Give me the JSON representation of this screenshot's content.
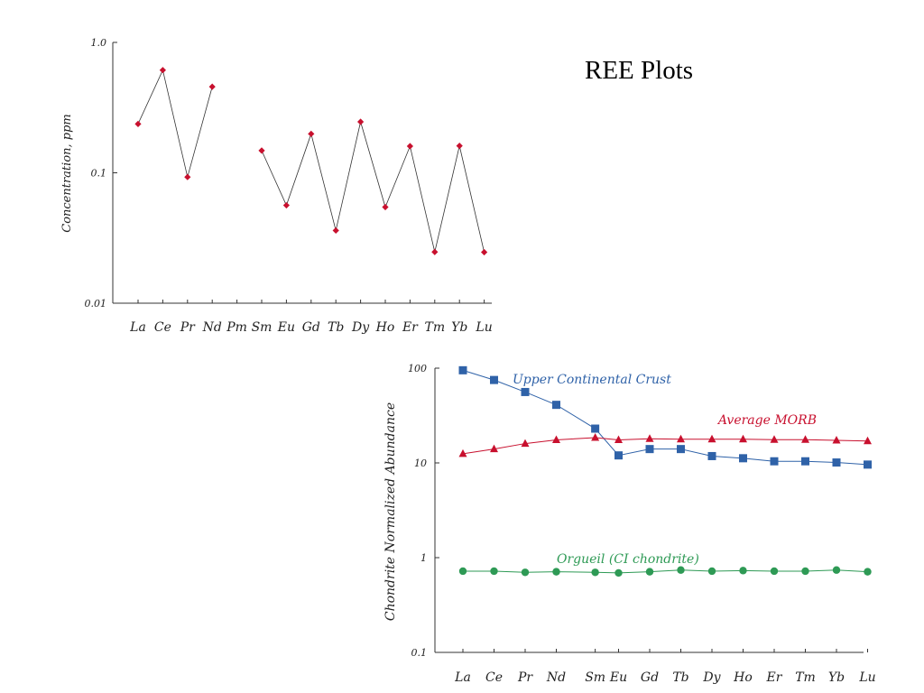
{
  "slide": {
    "title": "REE Plots"
  },
  "chart_data": [
    {
      "type": "line",
      "yscale": "log",
      "ylim": [
        0.01,
        1.0
      ],
      "ylabel": "Concentration, ppm",
      "y_ticks": [
        "1.0",
        "0.1",
        "0.01"
      ],
      "y_tick_values": [
        1.0,
        0.1,
        0.01
      ],
      "categories": [
        "La",
        "Ce",
        "Pr",
        "Nd",
        "Pm",
        "Sm",
        "Eu",
        "Gd",
        "Tb",
        "Dy",
        "Ho",
        "Er",
        "Tm",
        "Yb",
        "Lu"
      ],
      "series": [
        {
          "color": "#c8102e",
          "values": [
            0.237,
            0.613,
            0.0928,
            0.457,
            null,
            0.148,
            0.0563,
            0.199,
            0.0361,
            0.246,
            0.0546,
            0.16,
            0.0247,
            0.161,
            0.0246
          ]
        }
      ],
      "grid": false
    },
    {
      "type": "line",
      "yscale": "log",
      "ylim": [
        0.1,
        100
      ],
      "ylabel": "Chondrite Normalized Abundance",
      "y_ticks": [
        "100",
        "10",
        "1",
        "0.1"
      ],
      "y_tick_values": [
        100,
        10,
        1,
        0.1
      ],
      "categories": [
        "La",
        "Ce",
        "Pr",
        "Nd",
        "Sm",
        "Eu",
        "Gd",
        "Tb",
        "Dy",
        "Ho",
        "Er",
        "Tm",
        "Yb",
        "Lu"
      ],
      "x_positions": [
        0,
        1,
        2,
        3,
        4.25,
        5,
        6,
        7,
        8,
        9,
        10,
        11,
        12,
        13
      ],
      "series": [
        {
          "name": "Upper Continental Crust",
          "color": "#2f62a8",
          "marker": "square",
          "values": [
            95,
            75,
            56,
            41,
            23,
            12,
            14,
            14,
            11.8,
            11.2,
            10.4,
            10.4,
            10.1,
            9.6
          ]
        },
        {
          "name": "Average MORB",
          "color": "#c8102e",
          "marker": "triangle",
          "values": [
            12.5,
            14,
            16,
            17.5,
            18.5,
            17.5,
            18,
            17.8,
            17.8,
            17.8,
            17.6,
            17.6,
            17.3,
            17
          ]
        },
        {
          "name": "Orgueil (CI chondrite)",
          "color": "#2e9a55",
          "marker": "circle",
          "values": [
            0.72,
            0.72,
            0.7,
            0.71,
            0.7,
            0.69,
            0.71,
            0.74,
            0.72,
            0.73,
            0.72,
            0.72,
            0.74,
            0.71
          ]
        }
      ],
      "grid": false
    }
  ]
}
